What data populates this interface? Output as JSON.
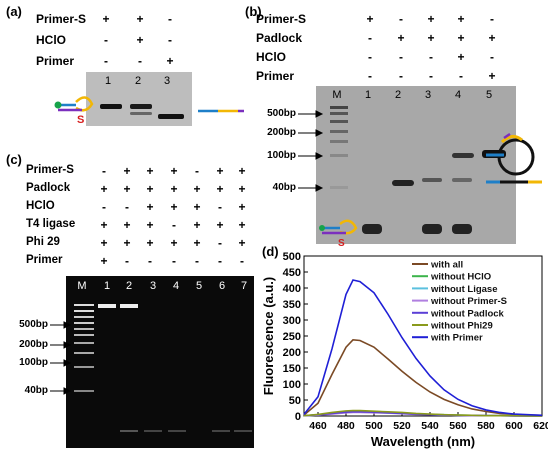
{
  "panel_a": {
    "label": "(a)",
    "rows": [
      {
        "name": "Primer-S",
        "signs": [
          "+",
          "+",
          "-"
        ]
      },
      {
        "name": "HClO",
        "signs": [
          "-",
          "+",
          "-"
        ]
      },
      {
        "name": "Primer",
        "signs": [
          "-",
          "-",
          "+"
        ]
      }
    ],
    "lanes": [
      "1",
      "2",
      "3"
    ],
    "colors": {
      "gel": "#bdbdbd",
      "band": "#111111",
      "marker": "#d61f1f"
    }
  },
  "panel_b": {
    "label": "(b)",
    "rows": [
      {
        "name": "Primer-S",
        "signs": [
          "+",
          "-",
          "+",
          "+",
          "-"
        ]
      },
      {
        "name": "Padlock",
        "signs": [
          "-",
          "+",
          "+",
          "+",
          "+"
        ]
      },
      {
        "name": "HClO",
        "signs": [
          "-",
          "-",
          "-",
          "+",
          "-"
        ]
      },
      {
        "name": "Primer",
        "signs": [
          "-",
          "-",
          "-",
          "-",
          "+"
        ]
      }
    ],
    "lanes": [
      "M",
      "1",
      "2",
      "3",
      "4",
      "5"
    ],
    "sizes": [
      "500bp",
      "200bp",
      "100bp",
      "40bp"
    ]
  },
  "panel_c": {
    "label": "(c)",
    "rows": [
      {
        "name": "Primer-S",
        "signs": [
          "-",
          "+",
          "+",
          "+",
          "-",
          "+",
          "+"
        ]
      },
      {
        "name": "Padlock",
        "signs": [
          "+",
          "+",
          "+",
          "+",
          "+",
          "+",
          "+"
        ]
      },
      {
        "name": "HClO",
        "signs": [
          "-",
          "-",
          "+",
          "+",
          "+",
          "-",
          "+"
        ]
      },
      {
        "name": "T4 ligase",
        "signs": [
          "+",
          "+",
          "+",
          "-",
          "+",
          "+",
          "+"
        ]
      },
      {
        "name": "Phi 29",
        "signs": [
          "+",
          "+",
          "+",
          "+",
          "+",
          "-",
          "+"
        ]
      },
      {
        "name": "Primer",
        "signs": [
          "+",
          "-",
          "-",
          "-",
          "-",
          "-",
          "-"
        ]
      }
    ],
    "lanes": [
      "M",
      "1",
      "2",
      "3",
      "4",
      "5",
      "6",
      "7"
    ],
    "sizes": [
      "500bp",
      "200bp",
      "100bp",
      "40bp"
    ]
  },
  "panel_d": {
    "label": "(d)",
    "chart_data": {
      "type": "line",
      "xlabel": "Wavelength (nm)",
      "ylabel": "Fluorescence (a.u.)",
      "xlim": [
        450,
        620
      ],
      "ylim": [
        0,
        500
      ],
      "xticks": [
        460,
        480,
        500,
        520,
        540,
        560,
        580,
        600,
        620
      ],
      "yticks": [
        0,
        50,
        100,
        150,
        200,
        250,
        300,
        350,
        400,
        450,
        500
      ],
      "x": [
        450,
        460,
        470,
        480,
        485,
        490,
        500,
        510,
        520,
        530,
        540,
        550,
        560,
        570,
        580,
        590,
        600,
        610,
        620
      ],
      "series": [
        {
          "name": "with all",
          "color": "#7b4a25",
          "values": [
            3,
            40,
            130,
            215,
            238,
            236,
            215,
            178,
            140,
            105,
            75,
            52,
            35,
            22,
            14,
            8,
            5,
            3,
            2
          ]
        },
        {
          "name": "without HClO",
          "color": "#3cb44b",
          "values": [
            1,
            4,
            9,
            13,
            14,
            14,
            13,
            11,
            9,
            7,
            5,
            4,
            3,
            2,
            1,
            1,
            1,
            0,
            0
          ]
        },
        {
          "name": "without Ligase",
          "color": "#5bc0de",
          "values": [
            1,
            3,
            7,
            11,
            12,
            12,
            11,
            9,
            8,
            6,
            4,
            3,
            2,
            2,
            1,
            1,
            0,
            0,
            0
          ]
        },
        {
          "name": "without Primer-S",
          "color": "#b07fe0",
          "values": [
            1,
            3,
            6,
            10,
            11,
            11,
            10,
            9,
            7,
            5,
            4,
            3,
            2,
            1,
            1,
            1,
            0,
            0,
            0
          ]
        },
        {
          "name": "without Padlock",
          "color": "#5b3fd6",
          "values": [
            1,
            4,
            8,
            12,
            13,
            13,
            12,
            10,
            8,
            6,
            5,
            3,
            2,
            2,
            1,
            1,
            0,
            0,
            0
          ]
        },
        {
          "name": "without Phi29",
          "color": "#8a9a1c",
          "values": [
            1,
            5,
            11,
            16,
            17,
            17,
            15,
            13,
            11,
            8,
            6,
            4,
            3,
            2,
            1,
            1,
            1,
            0,
            0
          ]
        },
        {
          "name": "with Primer",
          "color": "#1f1fd6",
          "values": [
            5,
            60,
            210,
            380,
            425,
            420,
            385,
            318,
            245,
            180,
            125,
            82,
            52,
            32,
            19,
            11,
            6,
            4,
            2
          ]
        }
      ]
    }
  }
}
